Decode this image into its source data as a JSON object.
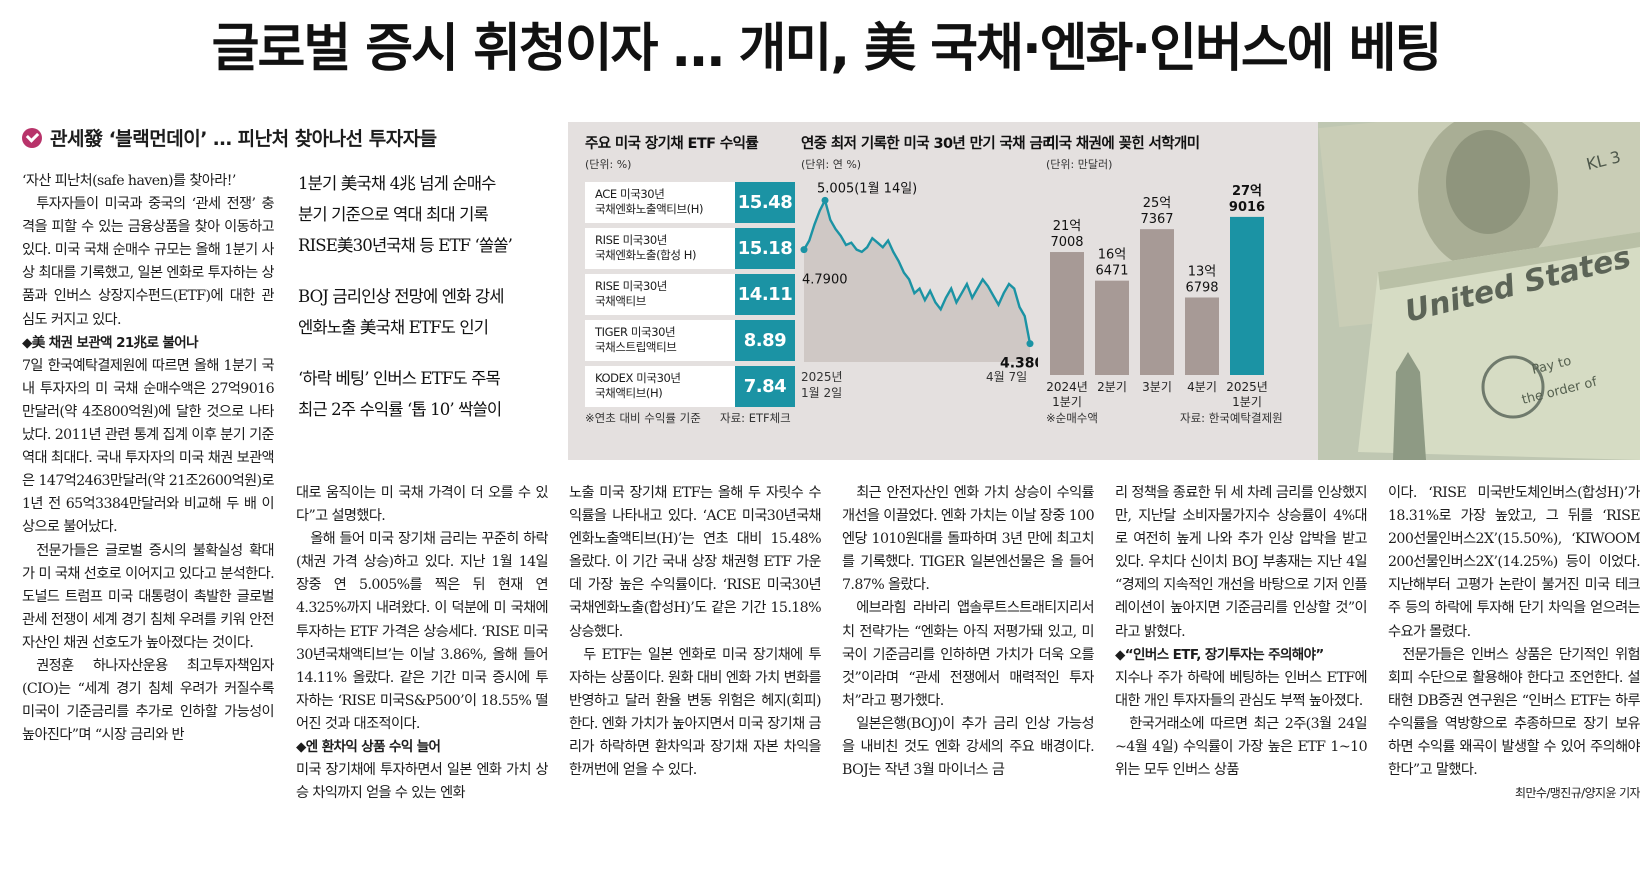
{
  "headline": "글로벌 증시 휘청이자 … 개미, 美 국채·엔화·인버스에 베팅",
  "subhead": "관세發 ‘블랙먼데이’ … 피난처 찾아나선 투자자들",
  "pullquotes": [
    [
      "1분기 美국채 4兆 넘게 순매수",
      "분기 기준으로 역대 최대 기록",
      "RISE美30년국채 등 ETF ‘쏠쏠’"
    ],
    [
      "BOJ 금리인상 전망에 엔화 강세",
      "엔화노출 美국채 ETF도 인기"
    ],
    [
      "‘하락 베팅’ 인버스 ETF도 주목",
      "최근 2주 수익률 ‘톱 10’ 싹쓸이"
    ]
  ],
  "col1": [
    {
      "t": "p",
      "x": "‘자산 피난처(safe haven)를 찾아라!’"
    },
    {
      "t": "i",
      "x": "투자자들이 미국과 중국의 ‘관세 전쟁’ 충격을 피할 수 있는 금융상품을 찾아 이동하고 있다. 미국 국채 순매수 규모는 올해 1분기 사상 최대를 기록했고, 일본 엔화로 투자하는 상품과 인버스 상장지수펀드(ETF)에 대한 관심도 커지고 있다."
    },
    {
      "t": "s",
      "x": "◆美 채권 보관액 21兆로 불어나"
    },
    {
      "t": "p",
      "x": "7일 한국예탁결제원에 따르면 올해 1분기 국내 투자자의 미 국채 순매수액은 27억9016만달러(약 4조800억원)에 달한 것으로 나타났다. 2011년 관련 통계 집계 이후 분기 기준 역대 최대다. 국내 투자자의 미국 채권 보관액은 147억2463만달러(약 21조2600억원)로 1년 전 65억3384만달러와 비교해 두 배 이상으로 불어났다."
    },
    {
      "t": "i",
      "x": "전문가들은 글로벌 증시의 불확실성 확대가 미 국채 선호로 이어지고 있다고 분석한다. 도널드 트럼프 미국 대통령이 촉발한 글로벌 관세 전쟁이 세계 경기 침체 우려를 키워 안전자산인 채권 선호도가 높아졌다는 것이다."
    },
    {
      "t": "i",
      "x": "권정훈 하나자산운용 최고투자책임자(CIO)는 “세계 경기 침체 우려가 커질수록 미국이 기준금리를 추가로 인하할 가능성이 높아진다”며 “시장 금리와 반"
    }
  ],
  "col2": [
    {
      "t": "p",
      "x": "대로 움직이는 미 국채 가격이 더 오를 수 있다”고 설명했다."
    },
    {
      "t": "i",
      "x": "올해 들어 미국 장기채 금리는 꾸준히 하락(채권 가격 상승)하고 있다. 지난 1월 14일 장중 연 5.005%를 찍은 뒤 현재 연 4.325%까지 내려왔다. 이 덕분에 미 국채에 투자하는 ETF 가격은 상승세다. ‘RISE 미국30년국채액티브’는 이날 3.86%, 올해 들어 14.11% 올랐다. 같은 기간 미국 증시에 투자하는 ‘RISE 미국S&P500’이 18.55% 떨어진 것과 대조적이다."
    },
    {
      "t": "s",
      "x": "◆엔 환차익 상품 수익 늘어"
    },
    {
      "t": "p",
      "x": "미국 장기채에 투자하면서 일본 엔화 가치 상승 차익까지 얻을 수 있는 엔화"
    }
  ],
  "col3": [
    {
      "t": "p",
      "x": "노출 미국 장기채 ETF는 올해 두 자릿수 수익률을 나타내고 있다. ‘ACE 미국30년국채엔화노출액티브(H)’는 연초 대비 15.48% 올랐다. 이 기간 국내 상장 채권형 ETF 가운데 가장 높은 수익률이다. ‘RISE 미국30년국채엔화노출(합성H)’도 같은 기간 15.18% 상승했다."
    },
    {
      "t": "i",
      "x": "두 ETF는 일본 엔화로 미국 장기채에 투자하는 상품이다. 원화 대비 엔화 가치 변화를 반영하고 달러 환율 변동 위험은 헤지(회피)한다. 엔화 가치가 높아지면서 미국 장기채 금리가 하락하면 환차익과 장기채 자본 차익을 한꺼번에 얻을 수 있다."
    }
  ],
  "col4": [
    {
      "t": "i",
      "x": "최근 안전자산인 엔화 가치 상승이 수익률 개선을 이끌었다. 엔화 가치는 이날 장중 100엔당 1010원대를 돌파하며 3년 만에 최고치를 기록했다. TIGER 일본엔선물은 올 들어 7.87% 올랐다."
    },
    {
      "t": "i",
      "x": "에브라힘 라바리 앱솔루트스트래티지리서치 전략가는 “엔화는 아직 저평가돼 있고, 미국이 기준금리를 인하하면 가치가 더욱 오를 것”이라며 “관세 전쟁에서 매력적인 투자처”라고 평가했다."
    },
    {
      "t": "i",
      "x": "일본은행(BOJ)이 추가 금리 인상 가능성을 내비친 것도 엔화 강세의 주요 배경이다. BOJ는 작년 3월 마이너스 금"
    }
  ],
  "col5": [
    {
      "t": "p",
      "x": "리 정책을 종료한 뒤 세 차례 금리를 인상했지만, 지난달 소비자물가지수 상승률이 4%대로 여전히 높게 나와 추가 인상 압박을 받고 있다. 우치다 신이치 BOJ 부총재는 지난 4일 “경제의 지속적인 개선을 바탕으로 기저 인플레이션이 높아지면 기준금리를 인상할 것”이라고 밝혔다."
    },
    {
      "t": "s",
      "x": "◆“인버스 ETF, 장기투자는 주의해야”"
    },
    {
      "t": "p",
      "x": "지수나 주가 하락에 베팅하는 인버스 ETF에 대한 개인 투자자들의 관심도 부쩍 높아졌다."
    },
    {
      "t": "i",
      "x": "한국거래소에 따르면 최근 2주(3월 24일~4월 4일) 수익률이 가장 높은 ETF 1~10위는 모두 인버스 상품"
    }
  ],
  "col6": [
    {
      "t": "p",
      "x": "이다. ‘RISE 미국반도체인버스(합성H)’가 18.31%로 가장 높았고, 그 뒤를 ‘RISE 200선물인버스2X’(15.50%), ‘KIWOOM 200선물인버스2X’(14.25%) 등이 이었다. 지난해부터 고평가 논란이 불거진 미국 테크주 등의 하락에 투자해 단기 차익을 얻으려는 수요가 몰렸다."
    },
    {
      "t": "i",
      "x": "전문가들은 인버스 상품은 단기적인 위험 회피 수단으로 활용해야 한다고 조언한다. 설태현 DB증권 연구원은 “인버스 ETF는 하루 수익률을 역방향으로 추종하므로 장기 보유하면 수익률 왜곡이 발생할 수 있어 주의해야 한다”고 말했다."
    }
  ],
  "byline": "최만수/맹진규/양지윤 기자",
  "info": {
    "panel1": {
      "title": "주요 미국 장기채 ETF 수익률",
      "unit": "(단위: %)",
      "items": [
        {
          "name": "ACE 미국30년\n국채엔화노출액티브(H)",
          "value": "15.48"
        },
        {
          "name": "RISE 미국30년\n국채엔화노출(합성 H)",
          "value": "15.18"
        },
        {
          "name": "RISE 미국30년\n국채액티브",
          "value": "14.11"
        },
        {
          "name": "TIGER 미국30년\n국채스트립액티브",
          "value": "8.89"
        },
        {
          "name": "KODEX 미국30년\n국채액티브(H)",
          "value": "7.84"
        }
      ],
      "note": "※연초 대비 수익률 기준",
      "source": "자료: ETF체크"
    },
    "panel2": {
      "title": "연중 최저 기록한 미국 30년 만기 국채 금리",
      "unit": "(단위: 연 %)",
      "start_label": "4.7900",
      "peak_label": "5.005(1월 14일)",
      "end_label": "4.3800",
      "x_start": "2025년",
      "x_start2": "1월 2일",
      "x_end": "4월 7일"
    },
    "panel3": {
      "title": "미국 채권에 꽂힌 서학개미",
      "unit": "(단위: 만달러)",
      "note": "※순매수액",
      "source": "자료: 한국예탁결제원"
    },
    "colors": {
      "teal": "#1b93a4",
      "taupe": "#a79a96",
      "bg": "#e4e0df"
    }
  },
  "chart_data": [
    {
      "type": "bar",
      "title": "주요 미국 장기채 ETF 수익률",
      "ylabel": "(단위: %)",
      "categories": [
        "ACE 미국30년국채엔화노출액티브(H)",
        "RISE 미국30년국채엔화노출(합성 H)",
        "RISE 미국30년국채액티브",
        "TIGER 미국30년국채스트립액티브",
        "KODEX 미국30년국채액티브(H)"
      ],
      "values": [
        15.48,
        15.18,
        14.11,
        8.89,
        7.84
      ]
    },
    {
      "type": "line",
      "title": "연중 최저 기록한 미국 30년 만기 국채 금리",
      "ylabel": "(단위: 연 %)",
      "x_range": [
        "2025-01-02",
        "2025-04-07"
      ],
      "ylim": [
        4.3,
        5.05
      ],
      "series": [
        {
          "values": [
            4.79,
            4.83,
            4.9,
            4.96,
            5.005,
            4.92,
            4.88,
            4.85,
            4.81,
            4.82,
            4.79,
            4.78,
            4.8,
            4.84,
            4.82,
            4.8,
            4.83,
            4.78,
            4.74,
            4.69,
            4.66,
            4.6,
            4.62,
            4.57,
            4.61,
            4.56,
            4.53,
            4.58,
            4.62,
            4.56,
            4.6,
            4.64,
            4.58,
            4.62,
            4.66,
            4.63,
            4.59,
            4.55,
            4.6,
            4.64,
            4.62,
            4.54,
            4.5,
            4.38
          ]
        }
      ],
      "labels": {
        "start": 4.79,
        "peak": 5.005,
        "end": 4.38
      }
    },
    {
      "type": "bar",
      "title": "미국 채권에 꽂힌 서학개미",
      "ylabel": "(단위: 만달러)",
      "categories": [
        "2024년 1분기",
        "2분기",
        "3분기",
        "4분기",
        "2025년 1분기"
      ],
      "values": [
        217008,
        166471,
        257367,
        136798,
        279016
      ],
      "value_labels": [
        "21억\n7008",
        "16억\n6471",
        "25억\n7367",
        "13억\n6798",
        "27억\n9016"
      ]
    }
  ]
}
